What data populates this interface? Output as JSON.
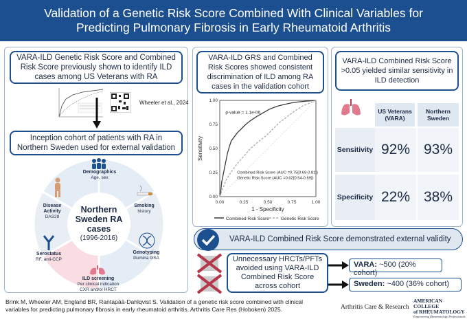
{
  "title_line1": "Validation of a Genetic Risk Score Combined With Clinical Variables for",
  "title_line2": "Predicting Pulmonary Fibrosis in Early Rheumatoid Arthritis",
  "left": {
    "box1": "VARA-ILD Genetic Risk Score and Combined Risk Score previously shown to identify ILD cases among US Veterans with RA",
    "citation": "Wheeler et al., 2024",
    "box2": "Inception cohort of patients with RA in Northern Sweden used for external validation",
    "wheel": {
      "center_line1": "Northern",
      "center_line2": "Sweden RA",
      "center_line3": "cases",
      "center_years": "(1996-2016)",
      "segments": [
        {
          "title": "Demographics",
          "sub": "Age, sex"
        },
        {
          "title": "Smoking",
          "sub": "history"
        },
        {
          "title": "Genotyping",
          "sub": "Illumina GSA"
        },
        {
          "title": "ILD screening",
          "sub": "Per clinical indication CXR and/or HRCT"
        },
        {
          "title": "Serostatus",
          "sub": "RF, anti-CCP"
        },
        {
          "title": "Disease Activity",
          "sub": "DAS28"
        }
      ]
    }
  },
  "middle": {
    "box": "VARA-ILD GRS and Combined Risk Scores showed consistent discrimination of ILD among RA cases in the validation cohort",
    "chart_data": {
      "type": "line",
      "xlabel": "1 - Specificity",
      "ylabel": "Sensitivity",
      "annotation": "p-value = 1.1e-06",
      "xlim": [
        0,
        1
      ],
      "ylim": [
        0,
        1
      ],
      "xticks": [
        "0.00",
        "0.25",
        "0.50",
        "0.75",
        "1.00"
      ],
      "yticks": [
        "0.00",
        "0.25",
        "0.50",
        "0.75",
        "1.00"
      ],
      "auc_combined": "Combined Risk Score (AUC =0.75[0.69-0.81])",
      "auc_genetic": "Genetic Risk Score (AUC =0.62[0.54-0.69])",
      "series": [
        {
          "name": "Combined Risk Score",
          "color": "#3a3a3a",
          "dash": false,
          "x": [
            0,
            0.01,
            0.02,
            0.04,
            0.06,
            0.08,
            0.1,
            0.12,
            0.15,
            0.18,
            0.22,
            0.27,
            0.32,
            0.38,
            0.45,
            0.52,
            0.6,
            0.68,
            0.78,
            0.88,
            1.0
          ],
          "y": [
            0,
            0.05,
            0.15,
            0.25,
            0.35,
            0.45,
            0.52,
            0.58,
            0.62,
            0.66,
            0.7,
            0.75,
            0.79,
            0.83,
            0.87,
            0.91,
            0.94,
            0.96,
            0.98,
            0.99,
            1.0
          ]
        },
        {
          "name": "Genetic Risk Score",
          "color": "#aaaaaa",
          "dash": true,
          "x": [
            0,
            0.03,
            0.07,
            0.12,
            0.18,
            0.25,
            0.32,
            0.4,
            0.48,
            0.55,
            0.62,
            0.7,
            0.78,
            0.86,
            0.93,
            1.0
          ],
          "y": [
            0,
            0.08,
            0.18,
            0.26,
            0.34,
            0.42,
            0.5,
            0.57,
            0.63,
            0.7,
            0.77,
            0.83,
            0.89,
            0.94,
            0.97,
            1.0
          ]
        }
      ]
    }
  },
  "right": {
    "box": "VARA-ILD Combined Risk Score >0.05 yielded similar sensitivity in ILD detection",
    "col1": "US Veterans (VARA)",
    "col2": "Northern Sweden",
    "rows": [
      {
        "label": "Sensitivity",
        "v1": "92%",
        "v2": "93%"
      },
      {
        "label": "Specificity",
        "v1": "22%",
        "v2": "38%"
      }
    ]
  },
  "banner": "VARA-ILD Combined Risk Score demonstrated external validity",
  "bottom": {
    "text": "Unnecessary HRCTs/PFTs avoided using VARA-ILD Combined Risk Score across cohort",
    "vara_label": "VARA:",
    "vara_value": " ~500 (20% cohort)",
    "sweden_label": "Sweden:",
    "sweden_value": " ~400 (36% cohort)"
  },
  "footer": "Brink M, Wheeler AM, England BR, Rantapää-Dahlqvist S. Validation of a genetic risk score combined with clinical variables for predicting pulmonary fibrosis in early rheumatoid arthritis. Arthritis Care Res (Hoboken) 2025.",
  "journal": "Arthritis Care & Research",
  "acr_line1": "AMERICAN COLLEGE",
  "acr_line2": "of RHEUMATOLOGY",
  "acr_tag": "Empowering Rheumatology Professionals"
}
